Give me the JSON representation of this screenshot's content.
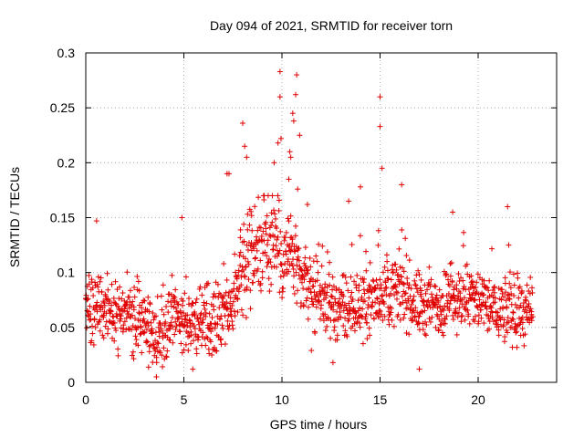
{
  "chart_data": {
    "type": "scatter",
    "title": "Day 094 of 2021, SRMTID for receiver torn",
    "xlabel": "GPS time / hours",
    "ylabel": "SRMTID / TECUs",
    "xlim": [
      0,
      24
    ],
    "ylim": [
      0,
      0.3
    ],
    "xticks": [
      0,
      5,
      10,
      15,
      20
    ],
    "xtick_labels": [
      "0",
      "5",
      "10",
      "15",
      "20"
    ],
    "yticks": [
      0,
      0.05,
      0.1,
      0.15,
      0.2,
      0.25,
      0.3
    ],
    "ytick_labels": [
      "0",
      "0.05",
      "0.1",
      "0.15",
      "0.2",
      "0.25",
      "0.3"
    ],
    "grid": true,
    "marker": "+",
    "color": "#e00000",
    "x_range": [
      0,
      22.8
    ],
    "trend": [
      [
        0.0,
        0.07
      ],
      [
        1.0,
        0.065
      ],
      [
        2.0,
        0.06
      ],
      [
        3.0,
        0.058
      ],
      [
        3.6,
        0.04
      ],
      [
        4.5,
        0.065
      ],
      [
        5.5,
        0.05
      ],
      [
        6.5,
        0.055
      ],
      [
        7.5,
        0.07
      ],
      [
        8.0,
        0.11
      ],
      [
        8.5,
        0.12
      ],
      [
        9.0,
        0.125
      ],
      [
        9.5,
        0.135
      ],
      [
        10.0,
        0.12
      ],
      [
        10.5,
        0.115
      ],
      [
        11.0,
        0.09
      ],
      [
        12.0,
        0.075
      ],
      [
        13.0,
        0.065
      ],
      [
        14.0,
        0.07
      ],
      [
        15.0,
        0.08
      ],
      [
        16.0,
        0.085
      ],
      [
        17.0,
        0.07
      ],
      [
        18.0,
        0.07
      ],
      [
        19.0,
        0.08
      ],
      [
        20.0,
        0.075
      ],
      [
        21.0,
        0.065
      ],
      [
        22.0,
        0.065
      ],
      [
        22.8,
        0.06
      ]
    ],
    "highlights": [
      [
        9.9,
        0.283
      ],
      [
        10.75,
        0.28
      ],
      [
        9.9,
        0.26
      ],
      [
        10.7,
        0.262
      ],
      [
        15.0,
        0.26
      ],
      [
        15.0,
        0.233
      ],
      [
        10.55,
        0.245
      ],
      [
        8.0,
        0.236
      ],
      [
        10.6,
        0.238
      ],
      [
        9.95,
        0.222
      ],
      [
        10.9,
        0.225
      ],
      [
        9.8,
        0.218
      ],
      [
        8.1,
        0.215
      ],
      [
        10.4,
        0.21
      ],
      [
        10.45,
        0.205
      ],
      [
        8.2,
        0.205
      ],
      [
        9.6,
        0.2
      ],
      [
        15.1,
        0.195
      ],
      [
        7.2,
        0.19
      ],
      [
        7.3,
        0.19
      ],
      [
        10.35,
        0.185
      ],
      [
        16.1,
        0.18
      ],
      [
        14.0,
        0.178
      ],
      [
        10.8,
        0.176
      ],
      [
        13.4,
        0.165
      ],
      [
        11.3,
        0.162
      ],
      [
        21.5,
        0.16
      ],
      [
        0.55,
        0.147
      ],
      [
        4.9,
        0.15
      ],
      [
        18.7,
        0.155
      ],
      [
        3.6,
        0.005
      ],
      [
        17.0,
        0.012
      ],
      [
        11.5,
        0.029
      ],
      [
        12.6,
        0.018
      ]
    ]
  }
}
